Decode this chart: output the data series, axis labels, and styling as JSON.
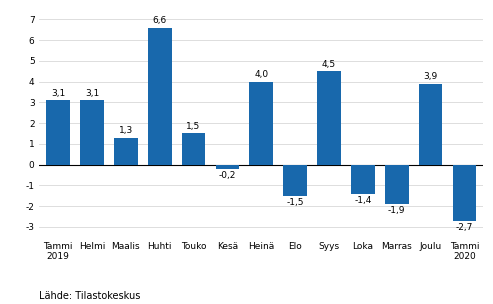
{
  "categories": [
    "Tammi\n2019",
    "Helmi",
    "Maalis",
    "Huhti",
    "Touko",
    "Kesä",
    "Heinä",
    "Elo",
    "Syys",
    "Loka",
    "Marras",
    "Joulu",
    "Tammi\n2020"
  ],
  "values": [
    3.1,
    3.1,
    1.3,
    6.6,
    1.5,
    -0.2,
    4.0,
    -1.5,
    4.5,
    -1.4,
    -1.9,
    3.9,
    -2.7
  ],
  "bar_color_hex": "#1868ac",
  "ylim": [
    -3.5,
    7.5
  ],
  "yticks": [
    -3,
    -2,
    -1,
    0,
    1,
    2,
    3,
    4,
    5,
    6,
    7
  ],
  "source_text": "Lähde: Tilastokeskus",
  "label_fontsize": 6.5,
  "tick_fontsize": 6.5,
  "source_fontsize": 7.0
}
